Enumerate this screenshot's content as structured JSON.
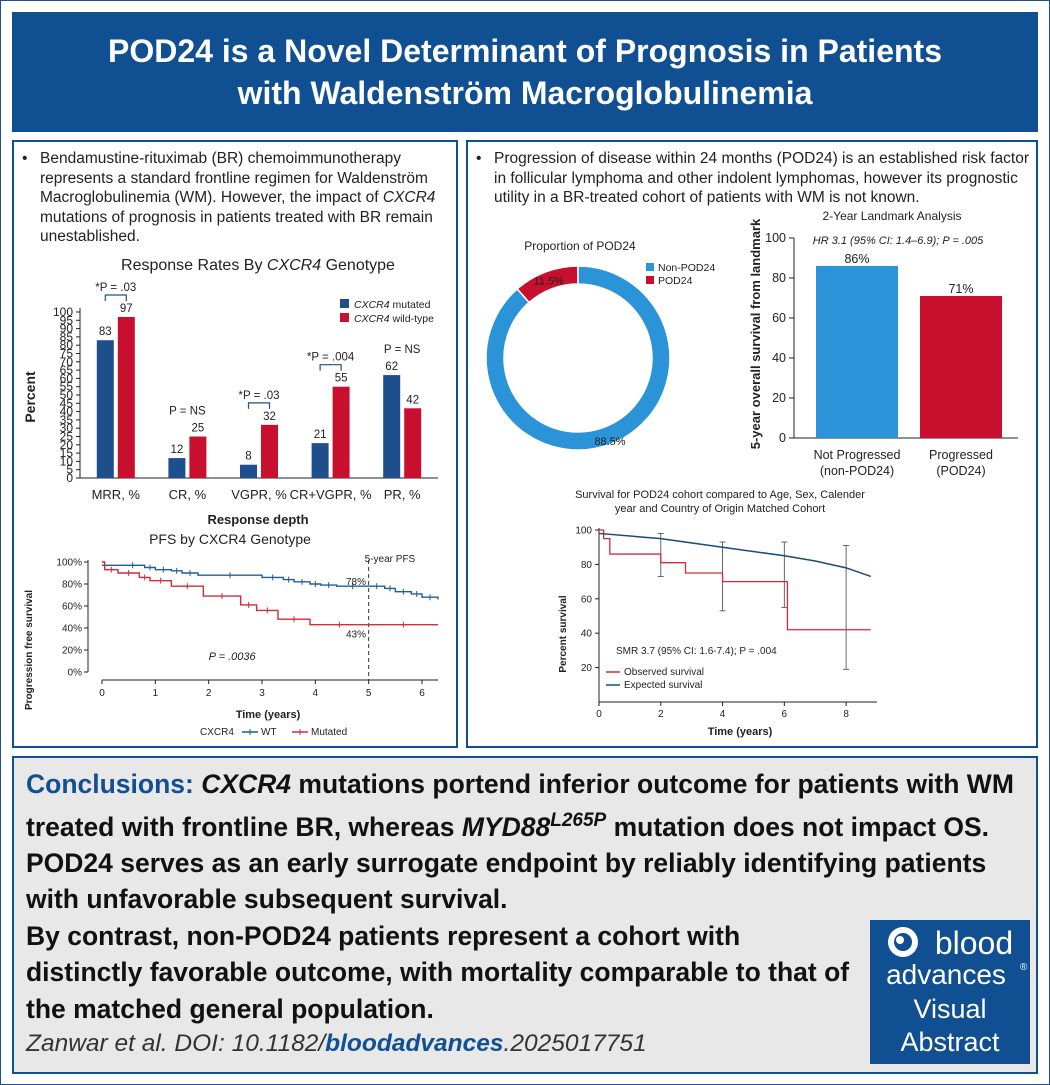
{
  "title": "POD24 is a Novel Determinant of Prognosis in Patients with Waldenström Macroglobulinemia",
  "left_bullet": {
    "lines": [
      "Bendamustine-rituximab (BR) chemoimmunotherapy",
      "represents a standard frontline regimen for Waldenström",
      "Macroglobulinemia (WM). However, the impact of ",
      "mutations of prognosis in patients treated with BR remain",
      "unestablished."
    ],
    "italic": "CXCR4"
  },
  "right_bullet": {
    "lines": [
      "Progression of disease within 24 months (POD24) is an established risk factor",
      "in follicular lymphoma and other indolent lymphomas, however its prognostic",
      "utility in a BR-treated cohort of patients with WM is not known."
    ]
  },
  "chart_data": [
    {
      "type": "bar",
      "title_prefix": "Response Rates By ",
      "title_italic": "CXCR4",
      "title_suffix": " Genotype",
      "categories": [
        "MRR, %",
        "CR, %",
        "VGPR, %",
        "CR+VGPR, %",
        "PR, %"
      ],
      "series": [
        {
          "name": "CXCR4 mutated",
          "name_italic": "CXCR4",
          "name_rest": " mutated",
          "color": "#1f4e8c",
          "values": [
            83,
            12,
            8,
            21,
            62
          ]
        },
        {
          "name": "CXCR4 wild-type",
          "name_italic": "CXCR4",
          "name_rest": " wild-type",
          "color": "#c8102e",
          "values": [
            97,
            25,
            32,
            55,
            42
          ]
        }
      ],
      "annotations": [
        "*P = .03",
        "P = NS",
        "*P = .03",
        "*P = .004",
        "P = NS"
      ],
      "bracketed": [
        true,
        false,
        true,
        true,
        false
      ],
      "ylabel": "Percent",
      "xlabel": "Response depth",
      "ylim": [
        0,
        100
      ],
      "yticks": [
        0,
        5,
        10,
        15,
        20,
        25,
        30,
        35,
        40,
        45,
        50,
        55,
        60,
        65,
        70,
        75,
        80,
        85,
        90,
        95,
        100
      ]
    },
    {
      "type": "line",
      "title": "PFS by CXCR4 Genotype",
      "xlabel": "Time (years)",
      "ylabel": "Progression free survival",
      "xlim": [
        0,
        6.3
      ],
      "ylim": [
        0,
        100
      ],
      "xticks": [
        0,
        1,
        2,
        3,
        4,
        5,
        6
      ],
      "yticks": [
        "0%",
        "20%",
        "40%",
        "60%",
        "80%",
        "100%"
      ],
      "legend_title": "CXCR4",
      "series": [
        {
          "name": "WT",
          "color": "#1f5f96",
          "x": [
            0,
            0.35,
            0.8,
            1.0,
            1.3,
            1.5,
            1.8,
            3.0,
            3.4,
            3.6,
            3.9,
            4.1,
            4.4,
            5.0,
            5.3,
            5.5,
            5.8,
            6.0,
            6.3
          ],
          "y": [
            97,
            97,
            95,
            93,
            92,
            90,
            88,
            86,
            84,
            82,
            80,
            79,
            78,
            78,
            76,
            73,
            71,
            68,
            66
          ]
        },
        {
          "name": "Mutated",
          "color": "#d42a3a",
          "x": [
            0,
            0.05,
            0.3,
            0.7,
            0.9,
            1.3,
            1.9,
            2.6,
            2.9,
            3.3,
            3.9,
            5.0,
            6.3
          ],
          "y": [
            100,
            93,
            90,
            86,
            83,
            78,
            69,
            61,
            56,
            48,
            43,
            43,
            43
          ]
        }
      ],
      "annotations": {
        "wt_5yr": "78%",
        "mut_5yr": "43%",
        "pvalue": "P = .0036",
        "label": "5-year PFS"
      },
      "marker_x": 5
    },
    {
      "type": "pie",
      "title": "Proportion of POD24",
      "labels": [
        "Non-POD24",
        "POD24"
      ],
      "values": [
        88.5,
        11.5
      ],
      "value_labels": [
        "88.5%",
        "11.5%"
      ],
      "colors": [
        "#2b93d8",
        "#c8102e"
      ]
    },
    {
      "type": "bar",
      "title": "2-Year Landmark Analysis",
      "hr_text": "HR 3.1 (95% CI: 1.4–6.9); P = .005",
      "categories": [
        [
          "Not Progressed",
          "(non-POD24)"
        ],
        [
          "Progressed",
          "(POD24)"
        ]
      ],
      "values": [
        86,
        71
      ],
      "value_labels": [
        "86%",
        "71%"
      ],
      "colors": [
        "#2b93d8",
        "#c8102e"
      ],
      "ylabel": "5-year overall survival from landmark",
      "ylim": [
        0,
        100
      ],
      "yticks": [
        0,
        20,
        40,
        60,
        80,
        100
      ]
    },
    {
      "type": "line",
      "title_lines": [
        "Survival for POD24 cohort compared to Age, Sex, Calender",
        "year and Country of Origin Matched Cohort"
      ],
      "xlabel": "Time (years)",
      "ylabel": "Percent survival",
      "xlim": [
        0,
        9
      ],
      "ylim": [
        0,
        100
      ],
      "xticks": [
        0,
        2,
        4,
        6,
        8
      ],
      "yticks": [
        20,
        40,
        60,
        80,
        100
      ],
      "smr_text": "SMR 3.7 (95% CI: 1.6-7.4); P = .004",
      "series": [
        {
          "name": "Observed survival",
          "color": "#d42a3a",
          "x": [
            0,
            0.15,
            0.35,
            2.0,
            2.8,
            4.0,
            6.0,
            6.1,
            8.8
          ],
          "y": [
            100,
            95,
            86,
            81,
            75,
            70,
            70,
            42,
            42
          ]
        },
        {
          "name": "Expected survival",
          "color": "#1a4a7a",
          "x": [
            0,
            2,
            4,
            6,
            7,
            8,
            8.8
          ],
          "y": [
            98,
            95,
            90,
            85,
            82,
            78,
            73
          ]
        }
      ],
      "error_bars": [
        {
          "x": 2,
          "lo": 73,
          "hi": 98
        },
        {
          "x": 4,
          "lo": 53,
          "hi": 93
        },
        {
          "x": 6,
          "lo": 55,
          "hi": 93
        },
        {
          "x": 8,
          "lo": 19,
          "hi": 91
        }
      ]
    }
  ],
  "conclusions": {
    "lead": "Conclusions:",
    "italic1": "CXCR4",
    "text1": " mutations portend inferior outcome for patients with WM treated with frontline BR, whereas ",
    "italic2": "MYD88",
    "sup": "L265P",
    "text2": " mutation does not impact OS. POD24 serves as an early surrogate endpoint by reliably identifying patients with unfavorable subsequent survival.",
    "text3": "By contrast, non-POD24 patients represent a cohort with distinctly favorable outcome, with mortality comparable to that of the matched general population."
  },
  "citation": {
    "prefix": "Zanwar et al. DOI: 10.1182/",
    "journal": "bloodadvances",
    "suffix": ".2025017751"
  },
  "logo": {
    "line1": "blood",
    "line2": "advances",
    "line3": "Visual",
    "line4": "Abstract",
    "reg": "®"
  }
}
